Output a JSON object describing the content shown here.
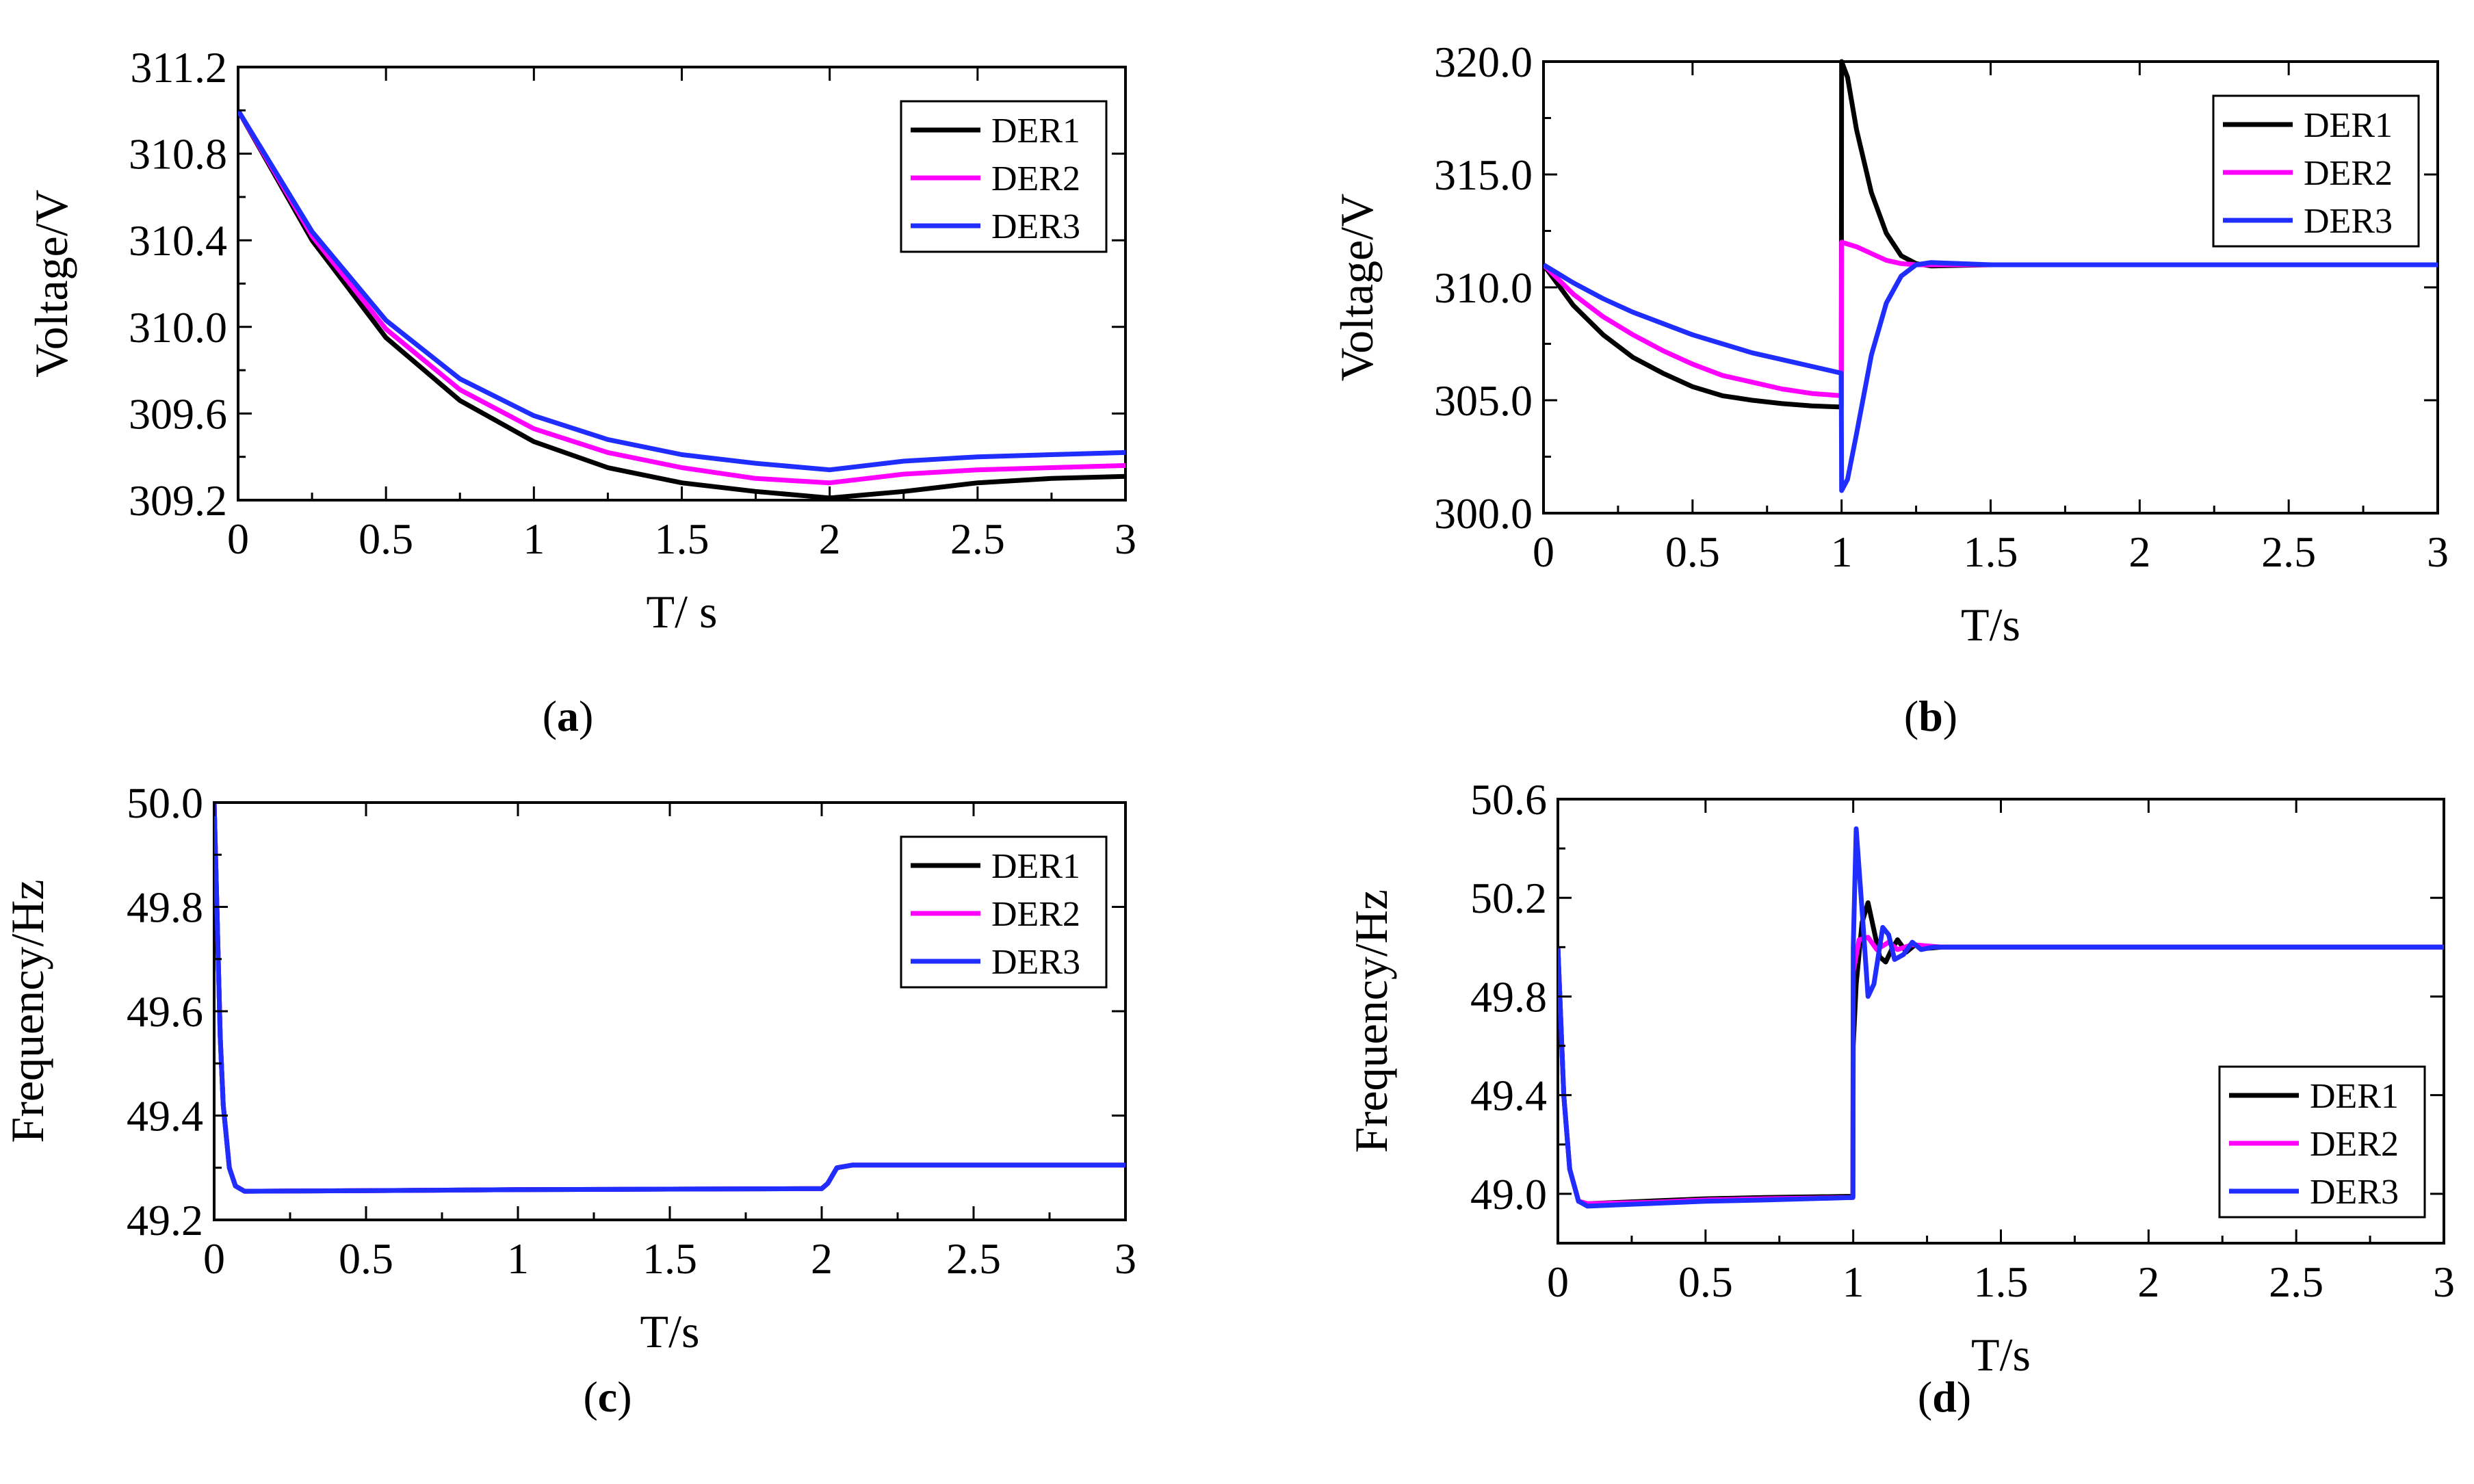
{
  "colors": {
    "DER1": "#000000",
    "DER2": "#ff00ff",
    "DER3": "#1f2dff"
  },
  "chart_data": [
    {
      "id": "a",
      "type": "line",
      "caption_open": "(",
      "caption_letter": "a",
      "caption_close": ")",
      "xlabel": "T/ s",
      "ylabel": "Voltage/V",
      "xlim": [
        0,
        3
      ],
      "ylim": [
        309.2,
        311.2
      ],
      "xticks": [
        0,
        0.5,
        1,
        1.5,
        2,
        2.5,
        3
      ],
      "xtick_labels": [
        "0",
        "0.5",
        "1",
        "1.5",
        "2",
        "2.5",
        "3"
      ],
      "yticks": [
        309.2,
        309.6,
        310.0,
        310.4,
        310.8,
        311.2
      ],
      "ytick_labels": [
        "309.2",
        "309.6",
        "310.0",
        "310.4",
        "310.8",
        "311.2"
      ],
      "legend": [
        "DER1",
        "DER2",
        "DER3"
      ],
      "legend_position": "top-right",
      "series": [
        {
          "name": "DER1",
          "x": [
            0,
            0.25,
            0.5,
            0.75,
            1.0,
            1.25,
            1.5,
            1.75,
            2.0,
            2.25,
            2.5,
            2.75,
            3.0
          ],
          "y": [
            311.0,
            310.4,
            309.95,
            309.66,
            309.47,
            309.35,
            309.28,
            309.24,
            309.21,
            309.24,
            309.28,
            309.3,
            309.31
          ]
        },
        {
          "name": "DER2",
          "x": [
            0,
            0.25,
            0.5,
            0.75,
            1.0,
            1.25,
            1.5,
            1.75,
            2.0,
            2.25,
            2.5,
            2.75,
            3.0
          ],
          "y": [
            311.0,
            310.42,
            309.99,
            309.71,
            309.53,
            309.42,
            309.35,
            309.3,
            309.28,
            309.32,
            309.34,
            309.35,
            309.36
          ]
        },
        {
          "name": "DER3",
          "x": [
            0,
            0.25,
            0.5,
            0.75,
            1.0,
            1.25,
            1.5,
            1.75,
            2.0,
            2.25,
            2.5,
            2.75,
            3.0
          ],
          "y": [
            311.0,
            310.44,
            310.03,
            309.76,
            309.59,
            309.48,
            309.41,
            309.37,
            309.34,
            309.38,
            309.4,
            309.41,
            309.42
          ]
        }
      ]
    },
    {
      "id": "b",
      "type": "line",
      "caption_open": "(",
      "caption_letter": "b",
      "caption_close": ")",
      "xlabel": "T/s",
      "ylabel": "Voltage/V",
      "xlim": [
        0,
        3
      ],
      "ylim": [
        300.0,
        320.0
      ],
      "xticks": [
        0,
        0.5,
        1,
        1.5,
        2,
        2.5,
        3
      ],
      "xtick_labels": [
        "0",
        "0.5",
        "1",
        "1.5",
        "2",
        "2.5",
        "3"
      ],
      "yticks": [
        300.0,
        305.0,
        310.0,
        315.0,
        320.0
      ],
      "ytick_labels": [
        "300.0",
        "305.0",
        "310.0",
        "315.0",
        "320.0"
      ],
      "legend": [
        "DER1",
        "DER2",
        "DER3"
      ],
      "legend_position": "top-right",
      "series": [
        {
          "name": "DER1",
          "x": [
            0,
            0.1,
            0.2,
            0.3,
            0.4,
            0.5,
            0.6,
            0.7,
            0.8,
            0.9,
            0.999,
            1.0,
            1.02,
            1.05,
            1.1,
            1.15,
            1.2,
            1.25,
            1.3,
            1.5,
            2.0,
            2.5,
            3.0
          ],
          "y": [
            311.0,
            309.2,
            307.9,
            306.9,
            306.2,
            305.6,
            305.2,
            305.0,
            304.85,
            304.75,
            304.7,
            320.0,
            319.3,
            317.0,
            314.2,
            312.4,
            311.4,
            311.05,
            310.95,
            311.0,
            311.0,
            311.0,
            311.0
          ]
        },
        {
          "name": "DER2",
          "x": [
            0,
            0.1,
            0.2,
            0.3,
            0.4,
            0.5,
            0.6,
            0.7,
            0.8,
            0.9,
            0.999,
            1.0,
            1.05,
            1.1,
            1.15,
            1.2,
            1.25,
            1.3,
            1.5,
            2.0,
            2.5,
            3.0
          ],
          "y": [
            311.0,
            309.7,
            308.7,
            307.9,
            307.2,
            306.6,
            306.1,
            305.8,
            305.5,
            305.3,
            305.2,
            312.0,
            311.8,
            311.5,
            311.2,
            311.05,
            311.0,
            311.0,
            311.0,
            311.0,
            311.0,
            311.0
          ]
        },
        {
          "name": "DER3",
          "x": [
            0,
            0.1,
            0.2,
            0.3,
            0.4,
            0.5,
            0.6,
            0.7,
            0.8,
            0.9,
            0.999,
            1.0,
            1.02,
            1.05,
            1.1,
            1.15,
            1.2,
            1.25,
            1.3,
            1.5,
            2.0,
            2.5,
            3.0
          ],
          "y": [
            311.0,
            310.2,
            309.5,
            308.9,
            308.4,
            307.9,
            307.5,
            307.1,
            306.8,
            306.5,
            306.2,
            301.0,
            301.5,
            303.5,
            307.0,
            309.3,
            310.5,
            311.0,
            311.1,
            311.0,
            311.0,
            311.0,
            311.0
          ]
        }
      ]
    },
    {
      "id": "c",
      "type": "line",
      "caption_open": "(",
      "caption_letter": "c",
      "caption_close": ")",
      "xlabel": "T/s",
      "ylabel": "Frequency/Hz",
      "xlim": [
        0,
        3
      ],
      "ylim": [
        49.2,
        50.0
      ],
      "xticks": [
        0,
        0.5,
        1,
        1.5,
        2,
        2.5,
        3
      ],
      "xtick_labels": [
        "0",
        "0.5",
        "1",
        "1.5",
        "2",
        "2.5",
        "3"
      ],
      "yticks": [
        49.2,
        49.4,
        49.6,
        49.8,
        50.0
      ],
      "ytick_labels": [
        "49.2",
        "49.4",
        "49.6",
        "49.8",
        "50.0"
      ],
      "legend": [
        "DER1",
        "DER2",
        "DER3"
      ],
      "legend_position": "top-right",
      "series": [
        {
          "name": "DER1",
          "x": [
            0,
            0.01,
            0.02,
            0.03,
            0.05,
            0.07,
            0.1,
            0.5,
            1.0,
            1.5,
            2.0,
            2.02,
            2.05,
            2.1,
            2.5,
            3.0
          ],
          "y": [
            50.0,
            49.78,
            49.55,
            49.42,
            49.3,
            49.265,
            49.255,
            49.256,
            49.258,
            49.259,
            49.26,
            49.27,
            49.3,
            49.305,
            49.305,
            49.305
          ]
        },
        {
          "name": "DER2",
          "x": [
            0,
            0.01,
            0.02,
            0.03,
            0.05,
            0.07,
            0.1,
            0.5,
            1.0,
            1.5,
            2.0,
            2.02,
            2.05,
            2.1,
            2.5,
            3.0
          ],
          "y": [
            50.0,
            49.78,
            49.55,
            49.42,
            49.3,
            49.265,
            49.255,
            49.256,
            49.258,
            49.259,
            49.26,
            49.27,
            49.3,
            49.305,
            49.305,
            49.305
          ]
        },
        {
          "name": "DER3",
          "x": [
            0,
            0.01,
            0.02,
            0.03,
            0.05,
            0.07,
            0.1,
            0.5,
            1.0,
            1.5,
            2.0,
            2.02,
            2.05,
            2.1,
            2.5,
            3.0
          ],
          "y": [
            50.0,
            49.78,
            49.55,
            49.42,
            49.3,
            49.265,
            49.255,
            49.256,
            49.258,
            49.259,
            49.26,
            49.27,
            49.3,
            49.305,
            49.305,
            49.305
          ]
        }
      ]
    },
    {
      "id": "d",
      "type": "line",
      "caption_open": "(",
      "caption_letter": "d",
      "caption_close": ")",
      "xlabel": "T/s",
      "ylabel": "Frequency/Hz",
      "xlim": [
        0,
        3
      ],
      "ylim": [
        48.8,
        50.6
      ],
      "xticks": [
        0,
        0.5,
        1,
        1.5,
        2,
        2.5,
        3
      ],
      "xtick_labels": [
        "0",
        "0.5",
        "1",
        "1.5",
        "2",
        "2.5",
        "3"
      ],
      "yticks": [
        49.0,
        49.4,
        49.8,
        50.2,
        50.6
      ],
      "ytick_labels": [
        "49.0",
        "49.4",
        "49.8",
        "50.2",
        "50.6"
      ],
      "legend": [
        "DER1",
        "DER2",
        "DER3"
      ],
      "legend_position": "bottom-right",
      "series": [
        {
          "name": "DER1",
          "x": [
            0,
            0.02,
            0.04,
            0.07,
            0.1,
            0.3,
            0.5,
            0.7,
            0.999,
            1.0,
            1.01,
            1.03,
            1.05,
            1.07,
            1.09,
            1.11,
            1.13,
            1.15,
            1.18,
            1.21,
            1.25,
            1.3,
            2.0,
            3.0
          ],
          "y": [
            50.0,
            49.4,
            49.1,
            48.97,
            48.96,
            48.97,
            48.98,
            48.985,
            48.99,
            49.6,
            49.85,
            50.1,
            50.18,
            50.07,
            49.96,
            49.94,
            49.99,
            50.03,
            49.98,
            50.01,
            49.995,
            50.0,
            50.0,
            50.0
          ]
        },
        {
          "name": "DER2",
          "x": [
            0,
            0.02,
            0.04,
            0.07,
            0.1,
            0.3,
            0.5,
            0.7,
            0.999,
            1.0,
            1.02,
            1.05,
            1.08,
            1.12,
            1.15,
            1.2,
            1.3,
            2.0,
            3.0
          ],
          "y": [
            50.0,
            49.4,
            49.1,
            48.97,
            48.96,
            48.965,
            48.975,
            48.98,
            48.985,
            49.9,
            50.03,
            50.04,
            49.99,
            50.02,
            49.99,
            50.01,
            50.0,
            50.0,
            50.0
          ]
        },
        {
          "name": "DER3",
          "x": [
            0,
            0.02,
            0.04,
            0.07,
            0.1,
            0.3,
            0.5,
            0.7,
            0.999,
            1.0,
            1.01,
            1.03,
            1.05,
            1.07,
            1.1,
            1.12,
            1.14,
            1.17,
            1.2,
            1.23,
            1.27,
            1.3,
            2.0,
            3.0
          ],
          "y": [
            50.0,
            49.4,
            49.1,
            48.97,
            48.95,
            48.96,
            48.97,
            48.975,
            48.985,
            50.0,
            50.48,
            50.15,
            49.8,
            49.85,
            50.08,
            50.05,
            49.95,
            49.97,
            50.02,
            49.99,
            50.0,
            50.0,
            50.0,
            50.0
          ]
        }
      ]
    }
  ]
}
